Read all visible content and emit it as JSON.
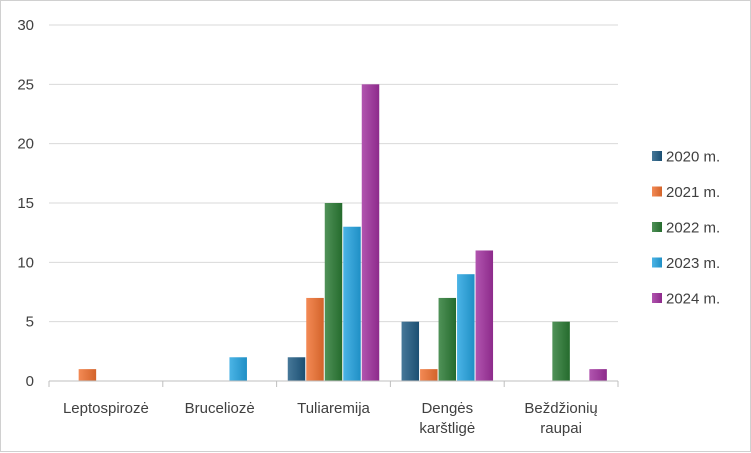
{
  "chart_data": {
    "type": "bar",
    "categories": [
      [
        "Leptospirozė"
      ],
      [
        "Bruceliozė"
      ],
      [
        "Tuliaremija"
      ],
      [
        "Dengės",
        "karštligė"
      ],
      [
        "Beždžionių",
        "raupai"
      ]
    ],
    "series": [
      {
        "name": "2020 m.",
        "color": "#1f5a82",
        "values": [
          0,
          0,
          2,
          5,
          0
        ]
      },
      {
        "name": "2021 m.",
        "color": "#f07030",
        "values": [
          1,
          0,
          7,
          1,
          0
        ]
      },
      {
        "name": "2022 m.",
        "color": "#2a7a33",
        "values": [
          0,
          0,
          15,
          7,
          5
        ]
      },
      {
        "name": "2023 m.",
        "color": "#23a3e0",
        "values": [
          0,
          2,
          13,
          9,
          0
        ]
      },
      {
        "name": "2024 m.",
        "color": "#a0309e",
        "values": [
          0,
          0,
          25,
          11,
          1
        ]
      }
    ],
    "ylim": [
      0,
      30
    ],
    "yticks": [
      "0",
      "5",
      "10",
      "15",
      "20",
      "25",
      "30"
    ],
    "grid": true,
    "legend_position": "right"
  }
}
